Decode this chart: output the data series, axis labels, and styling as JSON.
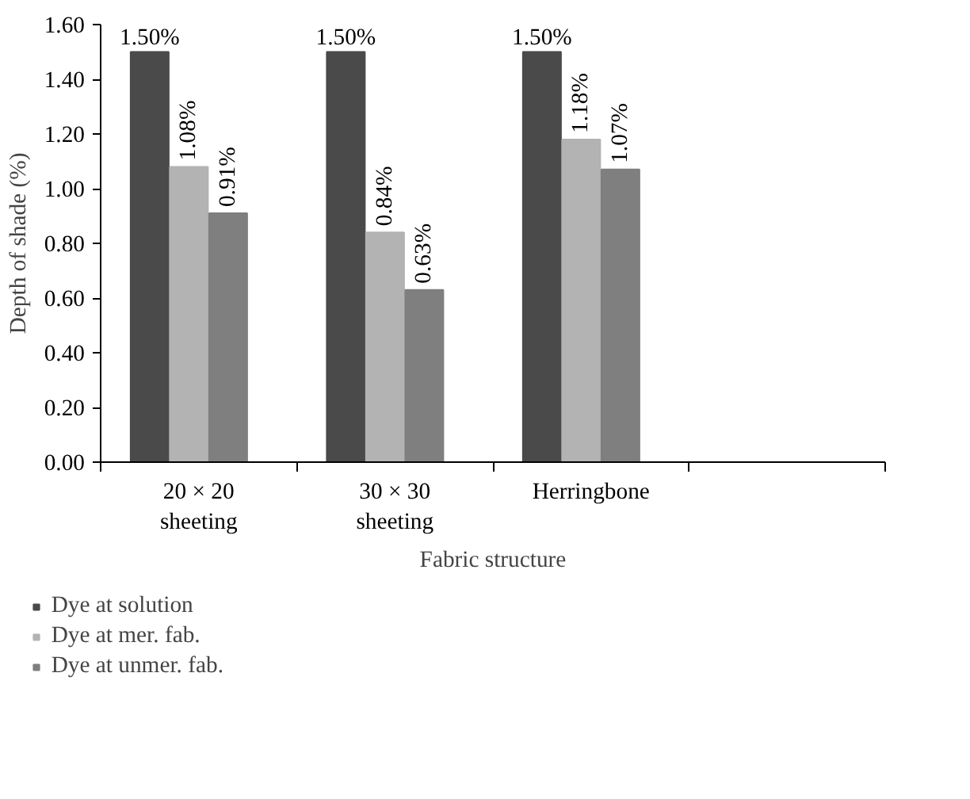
{
  "chart_data": {
    "type": "bar",
    "xlabel": "Fabric structure",
    "ylabel": "Depth of shade (%)",
    "categories": [
      "20 × 20\nsheeting",
      "30 × 30\nsheeting",
      "Herringbone",
      null
    ],
    "series": [
      {
        "name": "Dye at solution",
        "color": "#4a4a4a",
        "values": [
          1.5,
          1.5,
          1.5,
          null
        ],
        "value_labels": [
          "1.50%",
          "1.50%",
          "1.50%",
          null
        ]
      },
      {
        "name": "Dye at mer. fab.",
        "color": "#b3b3b3",
        "values": [
          1.08,
          0.84,
          1.18,
          null
        ],
        "value_labels": [
          "1.08%",
          "0.84%",
          "1.18%",
          null
        ]
      },
      {
        "name": "Dye at unmer. fab.",
        "color": "#7f7f7f",
        "values": [
          0.91,
          0.63,
          1.07,
          null
        ],
        "value_labels": [
          "0.91%",
          "0.63%",
          "1.07%",
          null
        ]
      }
    ],
    "ylim": [
      0,
      1.6
    ],
    "yticks": [
      {
        "value": 0,
        "label": "0.00"
      },
      {
        "value": 0.2,
        "label": "0.20"
      },
      {
        "value": 0.4,
        "label": "0.40"
      },
      {
        "value": 0.6,
        "label": "0.60"
      },
      {
        "value": 0.8,
        "label": "0.80"
      },
      {
        "value": 1.0,
        "label": "1.00"
      },
      {
        "value": 1.2,
        "label": "1.20"
      },
      {
        "value": 1.4,
        "label": "1.40"
      },
      {
        "value": 1.6,
        "label": "1.60"
      }
    ],
    "grid": false,
    "legend": "bottom left"
  }
}
